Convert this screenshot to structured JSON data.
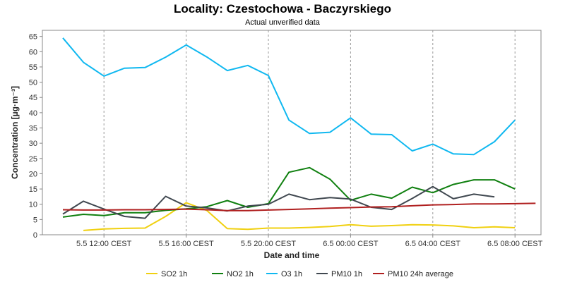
{
  "header": {
    "title": "Locality: Czestochowa - Baczyrskiego",
    "subtitle": "Actual unverified data"
  },
  "chart_data": {
    "type": "line",
    "title": "Locality: Czestochowa - Baczyrskiego",
    "subtitle": "Actual unverified data",
    "xlabel": "Date and time",
    "ylabel": "Concentration [µg·m⁻³]",
    "xlim": [
      0,
      22.8
    ],
    "ylim": [
      0,
      67
    ],
    "yticks": [
      0,
      5,
      10,
      15,
      20,
      25,
      30,
      35,
      40,
      45,
      50,
      55,
      60,
      65
    ],
    "xticks": [
      {
        "x": 2,
        "label": "5.5 12:00 CEST"
      },
      {
        "x": 6,
        "label": "5.5 16:00 CEST"
      },
      {
        "x": 10,
        "label": "5.5 20:00 CEST"
      },
      {
        "x": 14,
        "label": "6.5 00:00 CEST"
      },
      {
        "x": 18,
        "label": "6.5 04:00 CEST"
      },
      {
        "x": 22,
        "label": "6.5 08:00 CEST"
      }
    ],
    "grid": true,
    "legend_position": "bottom",
    "series": [
      {
        "name": "SO2 1h",
        "color": "#f0d010",
        "x": [
          1,
          2,
          3,
          4,
          5,
          6,
          7,
          8,
          9,
          10,
          11,
          12,
          13,
          14,
          15,
          16,
          17,
          18,
          19,
          20,
          21,
          22
        ],
        "values": [
          1.4,
          1.9,
          2.1,
          2.2,
          6,
          10.5,
          8,
          2,
          1.8,
          2.2,
          2.2,
          2.4,
          2.7,
          3.3,
          2.8,
          3,
          3.3,
          3.2,
          2.9,
          2.3,
          2.6,
          2.3
        ]
      },
      {
        "name": "NO2 1h",
        "color": "#108010",
        "x": [
          0,
          1,
          2,
          3,
          4,
          5,
          6,
          7,
          8,
          9,
          10,
          11,
          12,
          13,
          14,
          15,
          16,
          17,
          18,
          19,
          20,
          21,
          22
        ],
        "values": [
          5.8,
          6.7,
          6.3,
          7.2,
          7.2,
          8,
          8.5,
          9.2,
          11.2,
          9,
          10.2,
          20.5,
          22,
          18.2,
          11.3,
          13.3,
          12,
          15.6,
          13.8,
          16.5,
          18,
          18,
          15
        ]
      },
      {
        "name": "O3 1h",
        "color": "#10b8f0",
        "x": [
          0,
          1,
          2,
          3,
          4,
          5,
          6,
          7,
          8,
          9,
          10,
          11,
          12,
          13,
          14,
          15,
          16,
          17,
          18,
          19,
          20,
          21,
          22
        ],
        "values": [
          64.5,
          56.5,
          52,
          54.6,
          54.8,
          58.2,
          62.2,
          58.3,
          53.8,
          55.5,
          52.2,
          37.6,
          33.2,
          33.6,
          38.3,
          33,
          32.8,
          27.5,
          29.7,
          26.5,
          26.3,
          30.5,
          37.6
        ]
      },
      {
        "name": "PM10 1h",
        "color": "#404850",
        "x": [
          0,
          1,
          2,
          3,
          4,
          5,
          6,
          7,
          8,
          9,
          10,
          11,
          12,
          13,
          14,
          15,
          16,
          17,
          18,
          19,
          20,
          21
        ],
        "values": [
          6.8,
          11,
          8.4,
          6,
          5.4,
          12.6,
          9.4,
          8.8,
          7.8,
          9.4,
          10,
          13.3,
          11.5,
          12.2,
          11.7,
          9,
          8.3,
          11.9,
          15.8,
          11.8,
          13.3,
          12.4
        ]
      },
      {
        "name": "PM10 24h average",
        "color": "#b02020",
        "x": [
          0,
          1,
          2,
          3,
          4,
          5,
          6,
          7,
          8,
          9,
          10,
          11,
          12,
          13,
          14,
          15,
          16,
          17,
          18,
          19,
          20,
          21,
          22,
          23
        ],
        "values": [
          8.2,
          8.1,
          8.1,
          8.2,
          8.2,
          8.3,
          8.4,
          8.2,
          7.9,
          7.9,
          8.1,
          8.3,
          8.5,
          8.7,
          8.9,
          9.1,
          9.2,
          9.5,
          9.8,
          9.9,
          10.1,
          10.1,
          10.2,
          10.3
        ]
      }
    ]
  }
}
